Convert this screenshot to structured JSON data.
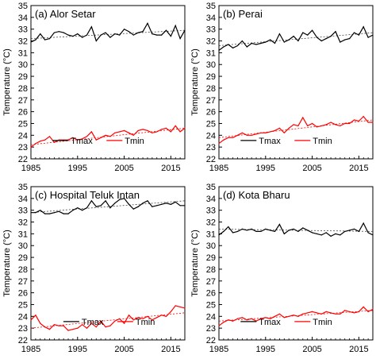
{
  "colors": {
    "tmax": "#000000",
    "tmin": "#ff0000",
    "trend": "#444444",
    "axis": "#000000"
  },
  "chart_data": [
    {
      "type": "line",
      "title": "(a) Alor Setar",
      "ylabel": "Temperature (°C)",
      "xlabel": "",
      "xlim": [
        1985,
        2018
      ],
      "ylim": [
        22,
        35
      ],
      "x_ticks": [
        1985,
        1995,
        2005,
        2015
      ],
      "y_ticks": [
        22,
        23,
        24,
        25,
        26,
        27,
        28,
        29,
        30,
        31,
        32,
        33,
        34,
        35
      ],
      "grid": false,
      "legend_position": "lower-center",
      "x": [
        1985,
        1986,
        1987,
        1988,
        1989,
        1990,
        1991,
        1992,
        1993,
        1994,
        1995,
        1996,
        1997,
        1998,
        1999,
        2000,
        2001,
        2002,
        2003,
        2004,
        2005,
        2006,
        2007,
        2008,
        2009,
        2010,
        2011,
        2012,
        2013,
        2014,
        2015,
        2016,
        2017,
        2018
      ],
      "series": [
        {
          "name": "Tmax",
          "values": [
            31.9,
            32.1,
            32.6,
            32.1,
            32.2,
            32.7,
            32.8,
            32.7,
            32.5,
            32.4,
            32.6,
            32.3,
            32.5,
            33.2,
            32.0,
            32.5,
            32.7,
            32.3,
            32.6,
            32.5,
            33.0,
            32.8,
            32.5,
            32.7,
            32.8,
            33.5,
            32.6,
            32.5,
            32.5,
            32.9,
            32.4,
            33.3,
            32.2,
            32.9
          ]
        },
        {
          "name": "Tmin",
          "values": [
            23.0,
            23.3,
            23.5,
            23.6,
            23.9,
            23.4,
            23.6,
            23.6,
            23.6,
            23.8,
            23.6,
            23.7,
            23.9,
            24.3,
            23.6,
            23.8,
            24.0,
            23.9,
            24.2,
            24.3,
            24.4,
            24.2,
            24.0,
            24.4,
            24.5,
            24.4,
            24.2,
            24.3,
            24.5,
            24.6,
            24.3,
            24.8,
            24.3,
            24.6
          ]
        }
      ],
      "trends": [
        {
          "series": "Tmax",
          "y": [
            32.2,
            32.9
          ]
        },
        {
          "series": "Tmin",
          "y": [
            23.2,
            24.6
          ]
        }
      ]
    },
    {
      "type": "line",
      "title": "(b) Perai",
      "ylabel": "Temperature (°C)",
      "xlabel": "",
      "xlim": [
        1985,
        2018
      ],
      "ylim": [
        22,
        35
      ],
      "x_ticks": [
        1985,
        1995,
        2005,
        2015
      ],
      "y_ticks": [
        22,
        23,
        24,
        25,
        26,
        27,
        28,
        29,
        30,
        31,
        32,
        33,
        34,
        35
      ],
      "grid": false,
      "legend_position": "lower-center",
      "x": [
        1985,
        1986,
        1987,
        1988,
        1989,
        1990,
        1991,
        1992,
        1993,
        1994,
        1995,
        1996,
        1997,
        1998,
        1999,
        2000,
        2001,
        2002,
        2003,
        2004,
        2005,
        2006,
        2007,
        2008,
        2009,
        2010,
        2011,
        2012,
        2013,
        2014,
        2015,
        2016,
        2017,
        2018
      ],
      "series": [
        {
          "name": "Tmax",
          "values": [
            31.2,
            31.5,
            31.7,
            31.4,
            31.6,
            32.0,
            31.5,
            31.8,
            31.7,
            31.8,
            31.9,
            32.1,
            31.8,
            32.6,
            31.9,
            32.1,
            32.4,
            32.0,
            32.7,
            32.5,
            32.9,
            32.3,
            32.0,
            32.2,
            32.4,
            32.8,
            31.9,
            32.1,
            32.2,
            32.7,
            32.5,
            33.2,
            32.3,
            32.5
          ]
        },
        {
          "name": "Tmin",
          "values": [
            23.3,
            23.6,
            23.8,
            23.8,
            24.0,
            24.2,
            24.0,
            24.0,
            24.1,
            24.2,
            24.2,
            24.3,
            24.4,
            24.6,
            24.2,
            24.6,
            24.9,
            24.8,
            25.5,
            24.8,
            25.0,
            24.7,
            24.8,
            24.9,
            25.1,
            24.9,
            24.8,
            25.0,
            25.0,
            25.3,
            25.2,
            25.6,
            25.1,
            25.1
          ]
        }
      ],
      "trends": [
        {
          "series": "Tmax",
          "y": [
            31.6,
            32.7
          ]
        },
        {
          "series": "Tmin",
          "y": [
            23.8,
            25.3
          ]
        }
      ]
    },
    {
      "type": "line",
      "title": "(c) Hospital Teluk Intan",
      "ylabel": "Temperature (°C)",
      "xlabel": "",
      "xlim": [
        1985,
        2018
      ],
      "ylim": [
        22,
        35
      ],
      "x_ticks": [
        1985,
        1995,
        2005,
        2015
      ],
      "y_ticks": [
        22,
        23,
        24,
        25,
        26,
        27,
        28,
        29,
        30,
        31,
        32,
        33,
        34,
        35
      ],
      "grid": false,
      "legend_position": "lower-right",
      "x": [
        1985,
        1986,
        1987,
        1988,
        1989,
        1990,
        1991,
        1992,
        1993,
        1994,
        1995,
        1996,
        1997,
        1998,
        1999,
        2000,
        2001,
        2002,
        2003,
        2004,
        2005,
        2006,
        2007,
        2008,
        2009,
        2010,
        2011,
        2012,
        2013,
        2014,
        2015,
        2016,
        2017,
        2018
      ],
      "series": [
        {
          "name": "Tmax",
          "values": [
            32.8,
            32.8,
            33.0,
            32.7,
            32.7,
            32.8,
            32.9,
            32.7,
            32.7,
            33.0,
            33.2,
            33.0,
            33.2,
            33.8,
            33.3,
            33.4,
            33.8,
            33.2,
            33.6,
            33.9,
            34.0,
            33.5,
            33.1,
            33.3,
            33.6,
            33.8,
            33.3,
            33.4,
            33.5,
            33.6,
            33.5,
            33.7,
            33.4,
            33.4
          ]
        },
        {
          "name": "Tmin",
          "values": [
            23.7,
            24.1,
            23.4,
            23.1,
            22.9,
            23.3,
            23.2,
            23.2,
            22.8,
            22.9,
            23.0,
            23.3,
            23.0,
            23.4,
            23.1,
            23.6,
            23.1,
            23.2,
            23.6,
            23.8,
            23.4,
            24.1,
            23.7,
            23.9,
            23.8,
            24.0,
            23.7,
            23.9,
            24.1,
            24.0,
            24.4,
            24.9,
            24.8,
            24.7
          ]
        }
      ],
      "trends": [
        {
          "series": "Tmax",
          "y": [
            32.8,
            33.8
          ]
        },
        {
          "series": "Tmin",
          "y": [
            23.0,
            24.3
          ]
        }
      ]
    },
    {
      "type": "line",
      "title": "(d) Kota Bharu",
      "ylabel": "Temperature (°C)",
      "xlabel": "",
      "xlim": [
        1985,
        2018
      ],
      "ylim": [
        22,
        35
      ],
      "x_ticks": [
        1985,
        1995,
        2005,
        2015
      ],
      "y_ticks": [
        22,
        23,
        24,
        25,
        26,
        27,
        28,
        29,
        30,
        31,
        32,
        33,
        34,
        35
      ],
      "grid": false,
      "legend_position": "lower-center",
      "x": [
        1985,
        1986,
        1987,
        1988,
        1989,
        1990,
        1991,
        1992,
        1993,
        1994,
        1995,
        1996,
        1997,
        1998,
        1999,
        2000,
        2001,
        2002,
        2003,
        2004,
        2005,
        2006,
        2007,
        2008,
        2009,
        2010,
        2011,
        2012,
        2013,
        2014,
        2015,
        2016,
        2017,
        2018
      ],
      "series": [
        {
          "name": "Tmax",
          "values": [
            30.9,
            31.2,
            31.6,
            31.1,
            31.2,
            31.4,
            31.3,
            31.4,
            31.2,
            31.2,
            31.4,
            31.3,
            31.2,
            31.8,
            31.0,
            31.3,
            31.4,
            31.2,
            31.5,
            31.3,
            31.1,
            31.0,
            30.9,
            31.1,
            30.8,
            31.0,
            30.9,
            31.2,
            31.3,
            31.4,
            31.2,
            31.9,
            31.1,
            30.9
          ]
        },
        {
          "name": "Tmin",
          "values": [
            23.2,
            23.5,
            23.7,
            23.6,
            23.8,
            23.9,
            23.7,
            23.8,
            23.6,
            23.8,
            23.9,
            23.8,
            24.0,
            24.2,
            23.9,
            24.0,
            24.1,
            24.0,
            24.2,
            24.3,
            24.4,
            24.3,
            24.2,
            24.4,
            24.3,
            24.2,
            24.2,
            24.5,
            24.4,
            24.3,
            24.4,
            24.8,
            24.4,
            24.6
          ]
        }
      ],
      "trends": [
        {
          "series": "Tmax",
          "y": [
            31.4,
            31.2
          ]
        },
        {
          "series": "Tmin",
          "y": [
            23.6,
            24.5
          ]
        }
      ]
    }
  ]
}
